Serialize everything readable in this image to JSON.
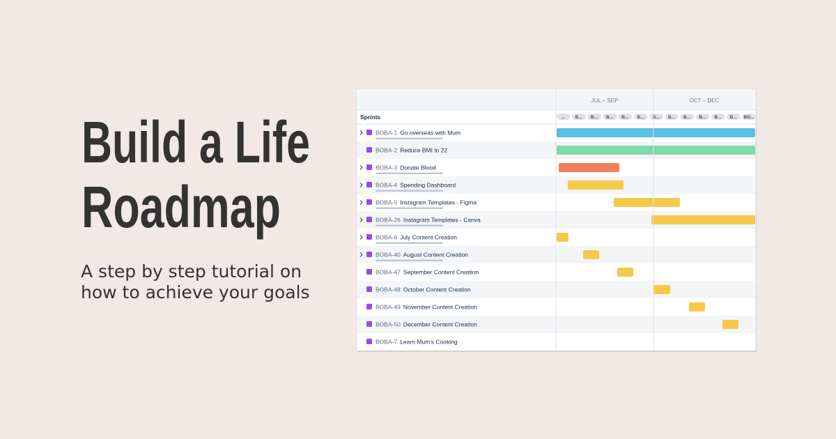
{
  "title": {
    "lines": [
      "Build a Life",
      "Roadmap"
    ]
  },
  "subtitle": {
    "lines": [
      "A step by step tutorial on",
      "how to achieve your goals"
    ]
  },
  "roadmap": {
    "quarters": [
      "JUL – SEP",
      "OCT – DEC"
    ],
    "sprints_label": "Sprints",
    "sprints": [
      "...",
      "B...",
      "B...",
      "B...",
      "B...",
      "B...",
      "B...",
      "B...",
      "B...",
      "B...",
      "B...",
      "B...",
      "BO..."
    ],
    "rows": [
      {
        "key": "BOBA-1",
        "name": "Go overseas with Mum"
      },
      {
        "key": "BOBA-2",
        "name": "Reduce BMI to 22"
      },
      {
        "key": "BOBA-3",
        "name": "Donate Blood"
      },
      {
        "key": "BOBA-4",
        "name": "Spending Dashboard"
      },
      {
        "key": "BOBA-5",
        "name": "Instagram Templates - Figma"
      },
      {
        "key": "BOBA-26",
        "name": "Instagram Templates - Canva"
      },
      {
        "key": "BOBA-6",
        "name": "July Content Creation"
      },
      {
        "key": "BOBA-40",
        "name": "August Content Creation"
      },
      {
        "key": "BOBA-47",
        "name": "September Content Creation"
      },
      {
        "key": "BOBA-48",
        "name": "October Content Creation"
      },
      {
        "key": "BOBA-49",
        "name": "November Content Creation"
      },
      {
        "key": "BOBA-50",
        "name": "December Content Creation"
      },
      {
        "key": "BOBA-7",
        "name": "Learn Mum's Cooking"
      }
    ]
  }
}
